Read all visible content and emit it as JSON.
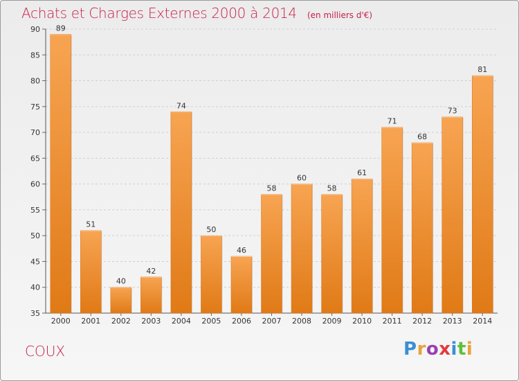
{
  "header": {
    "title": "Achats et Charges Externes 2000 à 2014",
    "subtitle": "(en milliers d'€)"
  },
  "footer": {
    "commune": "COUX",
    "brand": [
      "P",
      "r",
      "o",
      "x",
      "i",
      "t",
      "i"
    ],
    "brand_colors": [
      "#3a8fd6",
      "#e8a23a",
      "#9a3fb3",
      "#e23c3c",
      "#3a8fd6",
      "#5fbf3a",
      "#e8a23a"
    ]
  },
  "chart_data": {
    "type": "bar",
    "categories": [
      "2000",
      "2001",
      "2002",
      "2003",
      "2004",
      "2005",
      "2006",
      "2007",
      "2008",
      "2009",
      "2010",
      "2011",
      "2012",
      "2013",
      "2014"
    ],
    "values": [
      89,
      51,
      40,
      42,
      74,
      50,
      46,
      58,
      60,
      58,
      61,
      71,
      68,
      73,
      81
    ],
    "title": "Achats et Charges Externes 2000 à 2014",
    "ylim": [
      35,
      90
    ],
    "yticks": [
      35,
      40,
      45,
      50,
      55,
      60,
      65,
      70,
      75,
      80,
      85,
      90
    ],
    "grid": true,
    "bar_color": "#f0922f"
  }
}
